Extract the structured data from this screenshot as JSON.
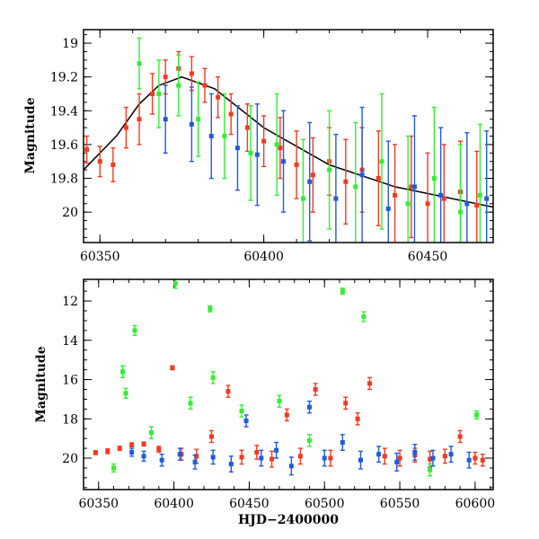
{
  "colors": {
    "green": "#33ee33",
    "blue": "#1f5bdc",
    "red": "#f23a22",
    "model": "#000000",
    "frame": "#000000"
  },
  "chart_data": [
    {
      "type": "scatter",
      "title": "",
      "xlabel": "",
      "ylabel": "Magnitude",
      "xlim": [
        60345,
        60470
      ],
      "ylim": [
        20.18,
        18.92
      ],
      "y_inverted": true,
      "x_ticks": [
        60350,
        60400,
        60450
      ],
      "x_tick_labels": [
        "60350",
        "60400",
        "60450"
      ],
      "y_ticks": [
        19,
        19.2,
        19.4,
        19.6,
        19.8,
        20
      ],
      "y_tick_labels": [
        "19",
        "19.2",
        "19.4",
        "19.6",
        "19.8",
        "20"
      ],
      "error_bars": true,
      "model_curve": {
        "peak_x": 60375,
        "peak_mag": 19.2,
        "x": [
          60345,
          60355,
          60362,
          60368,
          60375,
          60385,
          60400,
          60420,
          60440,
          60460,
          60470
        ],
        "y": [
          19.75,
          19.55,
          19.36,
          19.25,
          19.2,
          19.27,
          19.5,
          19.72,
          19.85,
          19.93,
          19.97
        ]
      },
      "series": [
        {
          "color_key": "red",
          "x": [
            60346,
            60350,
            60354,
            60358,
            60362,
            60366,
            60370,
            60374,
            60378,
            60382,
            60386,
            60390,
            60395,
            60400,
            60405,
            60410,
            60415,
            60420,
            60425,
            60430,
            60435,
            60440,
            60445,
            60450,
            60455,
            60460,
            60465
          ],
          "y": [
            19.63,
            19.7,
            19.72,
            19.5,
            19.45,
            19.3,
            19.2,
            19.15,
            19.18,
            19.25,
            19.32,
            19.42,
            19.5,
            19.58,
            19.62,
            19.72,
            19.78,
            19.7,
            19.82,
            19.75,
            19.8,
            19.9,
            19.85,
            19.95,
            19.92,
            19.88,
            19.96
          ],
          "err": [
            0.08,
            0.09,
            0.1,
            0.12,
            0.15,
            0.12,
            0.1,
            0.1,
            0.1,
            0.1,
            0.12,
            0.12,
            0.14,
            0.15,
            0.18,
            0.2,
            0.22,
            0.2,
            0.25,
            0.25,
            0.28,
            0.3,
            0.3,
            0.3,
            0.32,
            0.3,
            0.32
          ]
        },
        {
          "color_key": "green",
          "x": [
            60362,
            60368,
            60374,
            60380,
            60388,
            60396,
            60404,
            60412,
            60420,
            60428,
            60436,
            60444,
            60452,
            60460,
            60466
          ],
          "y": [
            19.12,
            19.3,
            19.25,
            19.45,
            19.55,
            19.65,
            19.6,
            19.92,
            19.75,
            19.85,
            19.7,
            19.95,
            19.8,
            20.0,
            19.9
          ],
          "err": [
            0.15,
            0.2,
            0.18,
            0.22,
            0.25,
            0.28,
            0.3,
            0.35,
            0.35,
            0.38,
            0.4,
            0.4,
            0.42,
            0.4,
            0.42
          ]
        },
        {
          "color_key": "blue",
          "x": [
            60370,
            60378,
            60384,
            60392,
            60398,
            60406,
            60414,
            60422,
            60430,
            60438,
            60446,
            60454,
            60462,
            60468
          ],
          "y": [
            19.45,
            19.48,
            19.55,
            19.62,
            19.66,
            19.7,
            19.82,
            19.92,
            19.78,
            19.98,
            19.85,
            19.9,
            19.95,
            19.92
          ],
          "err": [
            0.2,
            0.22,
            0.25,
            0.25,
            0.3,
            0.3,
            0.35,
            0.38,
            0.4,
            0.4,
            0.42,
            0.4,
            0.42,
            0.4
          ]
        }
      ]
    },
    {
      "type": "scatter",
      "title": "",
      "xlabel": "HJD−2400000",
      "ylabel": "Magnitude",
      "xlim": [
        60340,
        60612
      ],
      "ylim": [
        21.6,
        10.9
      ],
      "y_inverted": true,
      "x_ticks": [
        60350,
        60400,
        60450,
        60500,
        60550,
        60600
      ],
      "x_tick_labels": [
        "60350",
        "60400",
        "60450",
        "60500",
        "60550",
        "60600"
      ],
      "y_ticks": [
        12,
        14,
        16,
        18,
        20
      ],
      "y_tick_labels": [
        "12",
        "14",
        "16",
        "18",
        "20"
      ],
      "error_bars": true,
      "series": [
        {
          "color_key": "red",
          "x": [
            60348,
            60356,
            60364,
            60372,
            60380,
            60390,
            60399,
            60405,
            60415,
            60425,
            60436,
            60445,
            60455,
            60465,
            60475,
            60484,
            60494,
            60504,
            60514,
            60522,
            60530,
            60540,
            60550,
            60560,
            60570,
            60580,
            60590,
            60600,
            60605
          ],
          "y": [
            19.72,
            19.65,
            19.5,
            19.32,
            19.28,
            19.55,
            15.4,
            19.8,
            19.9,
            18.9,
            16.6,
            19.95,
            19.7,
            20.05,
            17.8,
            19.9,
            16.5,
            20.0,
            17.2,
            18.0,
            16.2,
            19.9,
            20.0,
            19.85,
            20.05,
            19.9,
            18.9,
            20.0,
            20.1
          ],
          "err": [
            0.1,
            0.12,
            0.1,
            0.1,
            0.1,
            0.15,
            0.1,
            0.3,
            0.35,
            0.3,
            0.3,
            0.35,
            0.35,
            0.4,
            0.3,
            0.4,
            0.3,
            0.4,
            0.3,
            0.3,
            0.3,
            0.4,
            0.4,
            0.35,
            0.4,
            0.35,
            0.3,
            0.3,
            0.3
          ]
        },
        {
          "color_key": "green",
          "x": [
            60360,
            60366,
            60368,
            60374,
            60385,
            60401,
            60411,
            60424,
            60426,
            60445,
            60470,
            60490,
            60512,
            60526,
            60570,
            60601
          ],
          "y": [
            20.5,
            15.6,
            16.7,
            13.5,
            18.7,
            11.1,
            17.2,
            12.4,
            15.9,
            17.6,
            17.1,
            19.1,
            11.5,
            12.8,
            20.6,
            17.8
          ],
          "err": [
            0.2,
            0.3,
            0.25,
            0.25,
            0.3,
            0.25,
            0.3,
            0.15,
            0.3,
            0.3,
            0.3,
            0.3,
            0.15,
            0.25,
            0.3,
            0.2
          ]
        },
        {
          "color_key": "blue",
          "x": [
            60372,
            60380,
            60392,
            60404,
            60414,
            60426,
            60438,
            60448,
            60458,
            60468,
            60478,
            60490,
            60500,
            60512,
            60524,
            60536,
            60548,
            60560,
            60572,
            60584,
            60596
          ],
          "y": [
            19.7,
            19.9,
            20.1,
            19.8,
            20.2,
            19.95,
            20.3,
            18.1,
            20.0,
            19.6,
            20.4,
            17.4,
            20.0,
            19.2,
            20.1,
            19.8,
            20.2,
            19.7,
            20.0,
            19.8,
            20.1
          ],
          "err": [
            0.2,
            0.25,
            0.3,
            0.3,
            0.35,
            0.35,
            0.4,
            0.3,
            0.4,
            0.4,
            0.45,
            0.3,
            0.4,
            0.4,
            0.45,
            0.4,
            0.45,
            0.4,
            0.4,
            0.4,
            0.4
          ]
        }
      ]
    }
  ]
}
